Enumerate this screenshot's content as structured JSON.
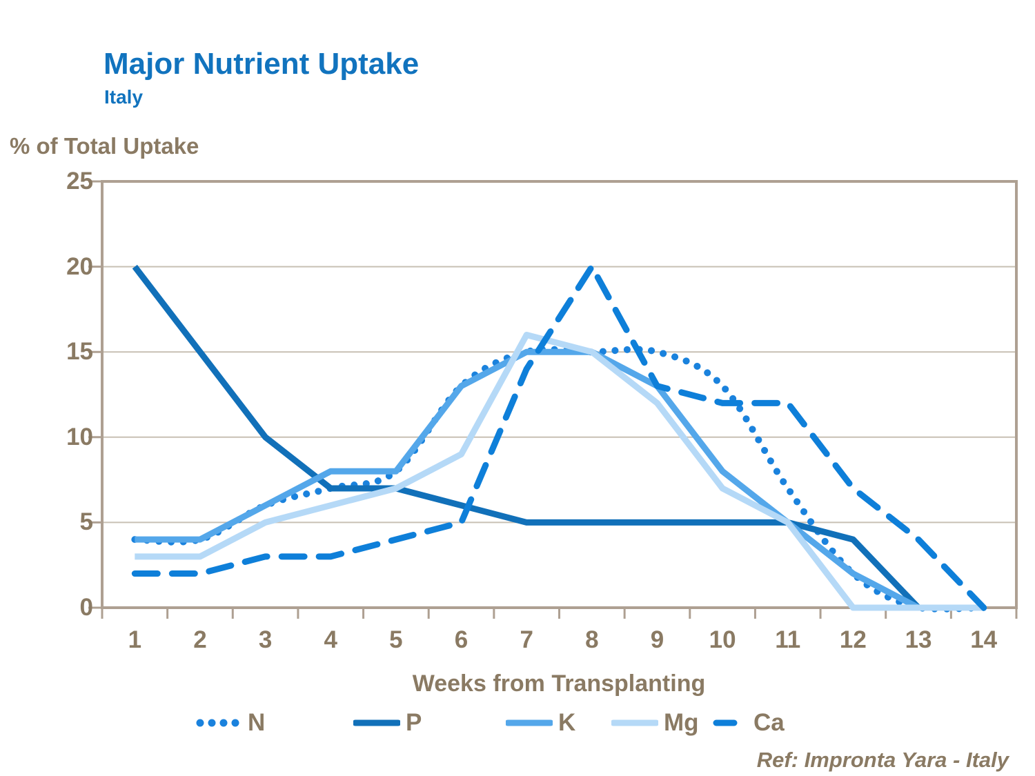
{
  "header": {
    "title": "Major Nutrient Uptake",
    "subtitle": "Italy"
  },
  "footer": {
    "ref": "Ref: Impronta Yara - Italy"
  },
  "colors": {
    "title_blue": "#1173BE",
    "label_brown": "#8A7A63",
    "axis_border": "#AEA092",
    "gridline": "#C8C0B4",
    "series_N": "#1A82DD",
    "series_P": "#1170B9",
    "series_K": "#54A7EA",
    "series_Mg": "#B5D9F7",
    "series_Ca": "#0E7FD9"
  },
  "chart_data": {
    "type": "line",
    "title": "Major Nutrient Uptake",
    "subtitle": "Italy",
    "xlabel": "Weeks from Transplanting",
    "ylabel": "% of Total Uptake",
    "categories": [
      "1",
      "2",
      "3",
      "4",
      "5",
      "6",
      "7",
      "8",
      "9",
      "10",
      "11",
      "12",
      "13",
      "14"
    ],
    "ylim": [
      0,
      25
    ],
    "yticks": [
      0,
      5,
      10,
      15,
      20,
      25
    ],
    "grid": true,
    "legend_position": "bottom",
    "series": [
      {
        "name": "N",
        "style": "dotted",
        "smooth": true,
        "color": "#1A82DD",
        "values": [
          4,
          4,
          6,
          7,
          8,
          13,
          15,
          15,
          15,
          13,
          7,
          2,
          0,
          0
        ]
      },
      {
        "name": "P",
        "style": "solid",
        "smooth": false,
        "color": "#1170B9",
        "values": [
          20,
          15,
          10,
          7,
          7,
          6,
          5,
          5,
          5,
          5,
          5,
          4,
          0,
          0
        ]
      },
      {
        "name": "K",
        "style": "solid",
        "smooth": false,
        "color": "#54A7EA",
        "values": [
          4,
          4,
          6,
          8,
          8,
          13,
          15,
          15,
          13,
          8,
          5,
          2,
          0,
          0
        ]
      },
      {
        "name": "Mg",
        "style": "solid",
        "smooth": false,
        "color": "#B5D9F7",
        "values": [
          3,
          3,
          5,
          6,
          7,
          9,
          16,
          15,
          12,
          7,
          5,
          0,
          0,
          0
        ]
      },
      {
        "name": "Ca",
        "style": "dashed",
        "smooth": false,
        "color": "#0E7FD9",
        "values": [
          2,
          2,
          3,
          3,
          4,
          5,
          14,
          20,
          13,
          12,
          12,
          7,
          4,
          0
        ]
      }
    ]
  }
}
